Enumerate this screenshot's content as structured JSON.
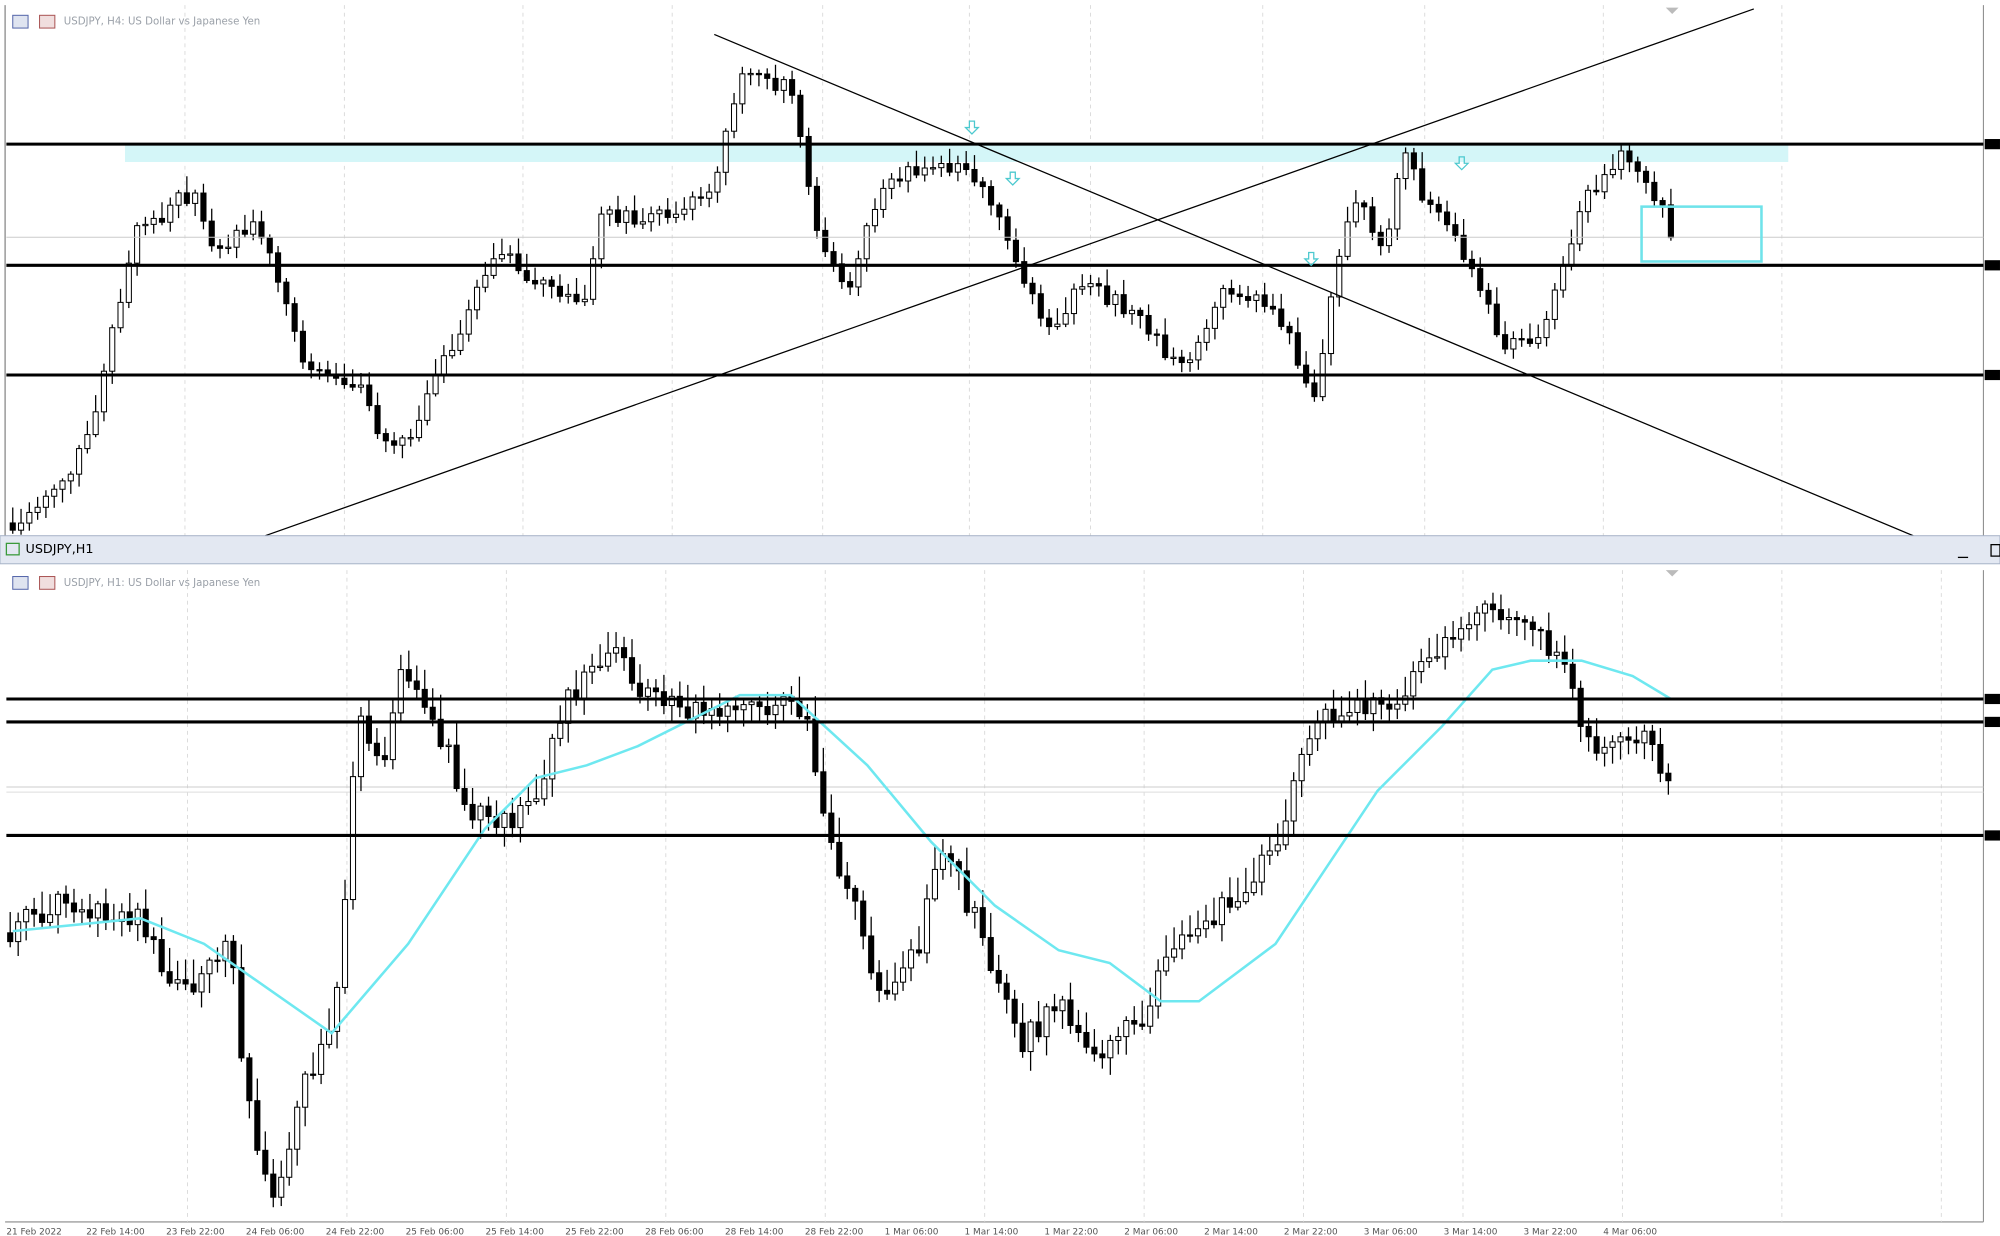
{
  "top_panel": {
    "title": "USDJPY, H4: US Dollar vs Japanese Yen"
  },
  "window_title": "USDJPY,H1",
  "bottom_panel": {
    "title": "USDJPY, H1: US Dollar vs Japanese Yen",
    "time_axis": [
      "21 Feb 2022",
      "22 Feb 14:00",
      "23 Feb 22:00",
      "24 Feb 06:00",
      "24 Feb 22:00",
      "25 Feb 06:00",
      "25 Feb 14:00",
      "25 Feb 22:00",
      "28 Feb 06:00",
      "28 Feb 14:00",
      "28 Feb 22:00",
      "1 Mar 06:00",
      "1 Mar 14:00",
      "1 Mar 22:00",
      "2 Mar 06:00",
      "2 Mar 14:00",
      "2 Mar 22:00",
      "3 Mar 06:00",
      "3 Mar 14:00",
      "3 Mar 22:00",
      "4 Mar 06:00"
    ]
  }
}
